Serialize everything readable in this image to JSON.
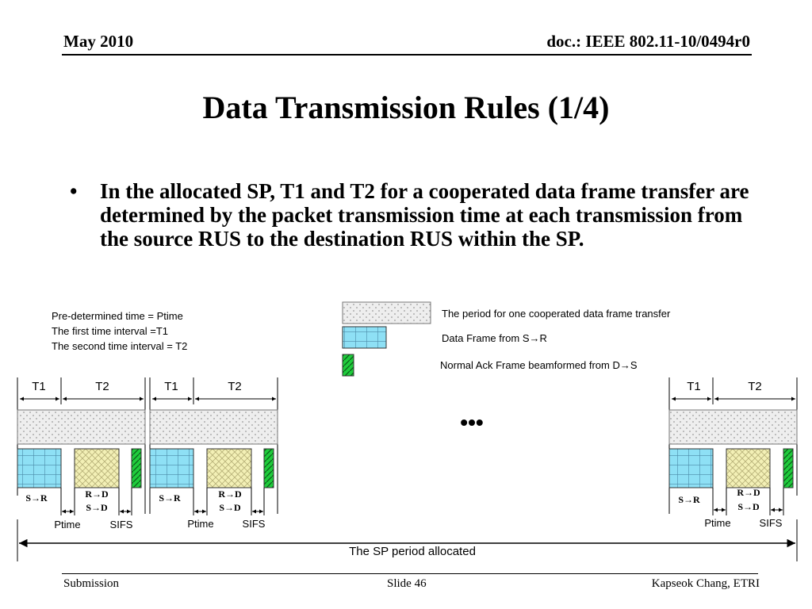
{
  "header": {
    "date": "May 2010",
    "doc": "doc.: IEEE 802.11-10/0494r0"
  },
  "title": "Data Transmission Rules (1/4)",
  "bullet": "In the allocated SP, T1 and T2 for a cooperated data frame transfer are determined by the packet transmission time at each transmission from the source RUS to the destination RUS within the SP.",
  "diagram": {
    "definitions": [
      "Pre-determined time = Ptime",
      "The first time interval =T1",
      "The second time interval = T2"
    ],
    "legend": {
      "period": "The period for one cooperated data frame transfer",
      "data_frame": "Data Frame from S→R",
      "ack_frame": "Normal Ack Frame beamformed from D→S"
    },
    "intervals": {
      "t1": "T1",
      "t2": "T2"
    },
    "frames": {
      "sr": "S→R",
      "rd": "R→D",
      "sd": "S→D"
    },
    "gaps": {
      "ptime": "Ptime",
      "sifs": "SIFS"
    },
    "ellipsis": "•••",
    "sp_label": "The SP period allocated",
    "colors": {
      "data": "#8ee0f5",
      "relay": "#f3f0b6",
      "ack": "#1fcc3c",
      "period": "#eeeeee"
    }
  },
  "footer": {
    "left": "Submission",
    "center": "Slide 46",
    "right": "Kapseok Chang, ETRI"
  }
}
